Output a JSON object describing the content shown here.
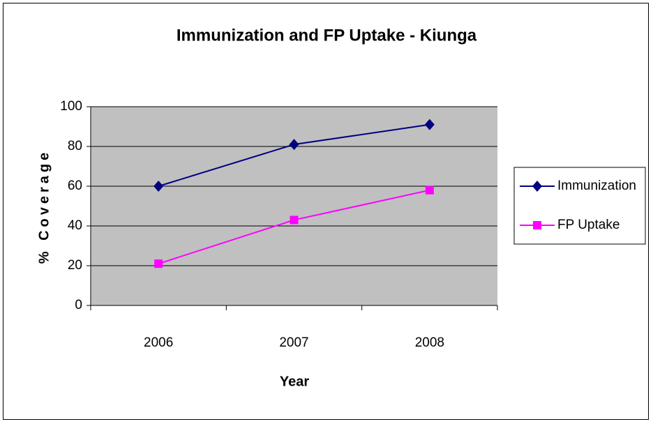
{
  "chart_data": {
    "type": "line",
    "title": "Immunization and FP Uptake - Kiunga",
    "x_label": "Year",
    "y_label": "% Coverage",
    "categories": [
      "2006",
      "2007",
      "2008"
    ],
    "series": [
      {
        "name": "Immunization",
        "color": "#000080",
        "marker": "diamond",
        "values": [
          60,
          81,
          91
        ]
      },
      {
        "name": "FP Uptake",
        "color": "#ff00ff",
        "marker": "square",
        "values": [
          21,
          43,
          58
        ]
      }
    ],
    "ylim": [
      0,
      100
    ],
    "yticks": [
      0,
      20,
      40,
      60,
      80,
      100
    ],
    "grid": true,
    "legend": "right",
    "plot_background": "#c0c0c0"
  }
}
